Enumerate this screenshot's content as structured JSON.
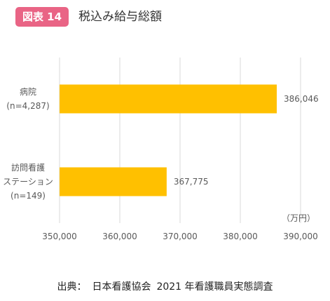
{
  "figure": {
    "badge": "図表 14",
    "title": "税込み給与総額",
    "source_prefix": "出典：",
    "source_org": "日本看護協会",
    "source_survey": "2021 年看護職員実態調査"
  },
  "chart_data": {
    "type": "bar",
    "orientation": "horizontal",
    "title": "税込み給与総額",
    "unit": "（万円）",
    "categories": [
      {
        "lines": [
          "病院",
          "(n=4,287)"
        ]
      },
      {
        "lines": [
          "訪問看護",
          "ステーション",
          "(n=149)"
        ]
      }
    ],
    "values": [
      386046,
      367775
    ],
    "value_labels": [
      "386,046",
      "367,775"
    ],
    "xlim": [
      350000,
      390000
    ],
    "ticks": [
      350000,
      360000,
      370000,
      380000,
      390000
    ],
    "tick_labels": [
      "350,000",
      "360,000",
      "370,000",
      "380,000",
      "390,000"
    ],
    "grid": true,
    "colors": {
      "bar": "#ffc000",
      "grid": "#d9d9d9",
      "text": "#595959",
      "badge": "#e96485"
    }
  }
}
